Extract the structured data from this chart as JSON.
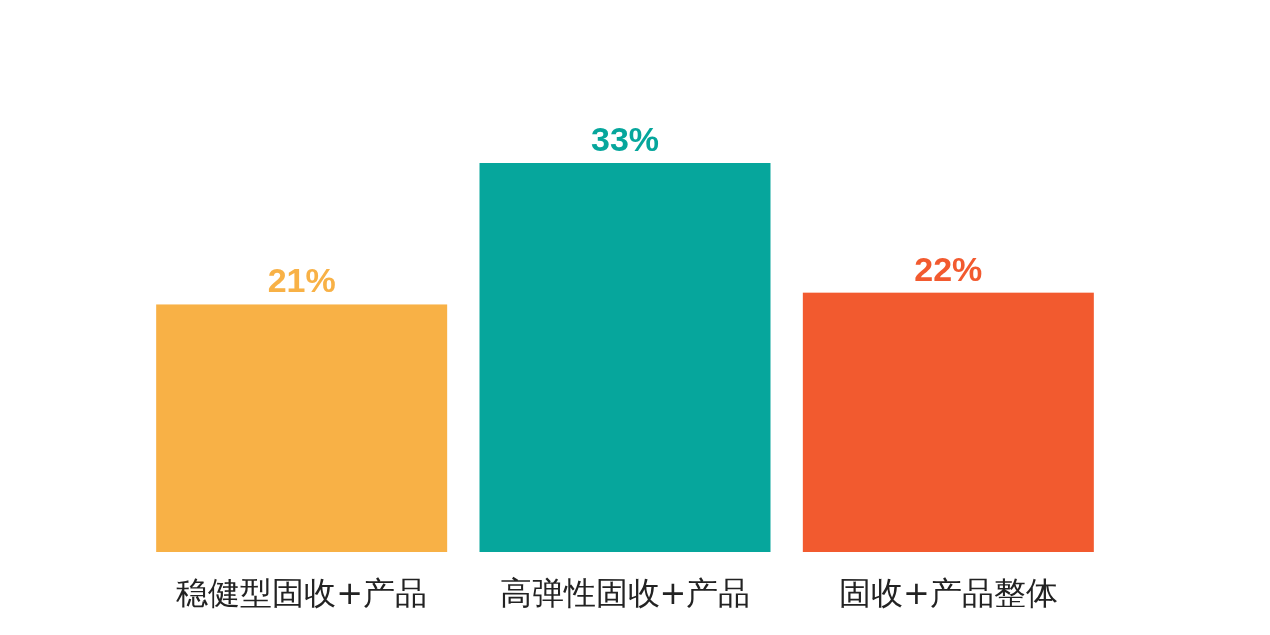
{
  "chart_data": {
    "type": "bar",
    "categories": [
      "稳健型固收+产品",
      "高弹性固收+产品",
      "固收+产品整体"
    ],
    "values": [
      21,
      33,
      22
    ],
    "colors": [
      "#f8b146",
      "#06a69c",
      "#f25a2f"
    ],
    "value_labels": [
      "21%",
      "33%",
      "22%"
    ]
  }
}
